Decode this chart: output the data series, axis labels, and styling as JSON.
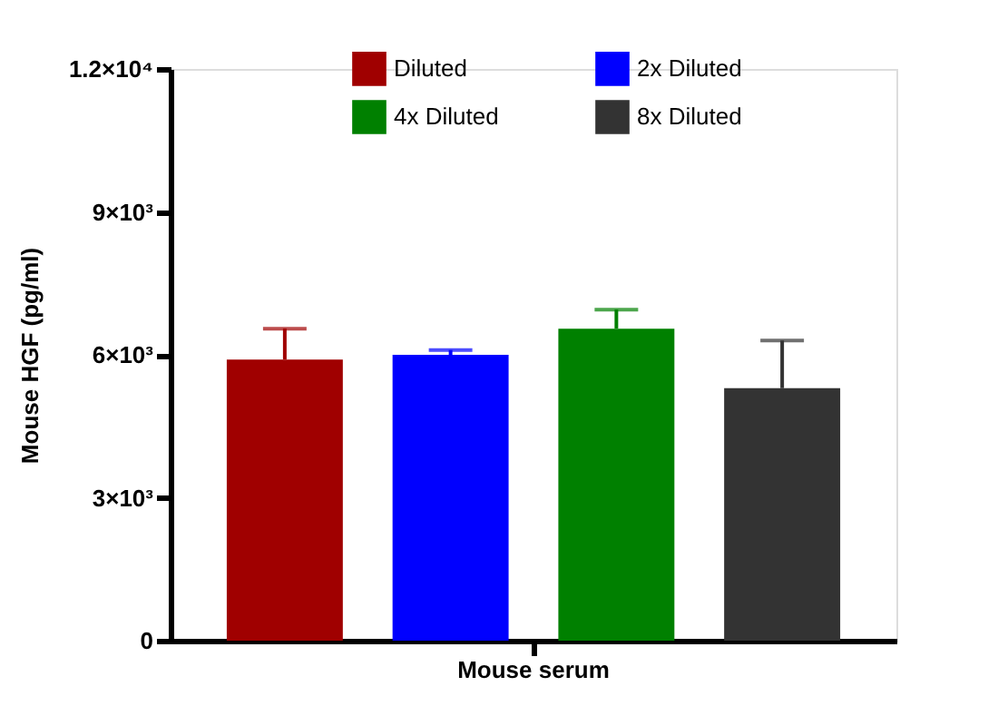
{
  "chart_data": {
    "type": "bar",
    "ylabel": "Mouse HGF (pg/ml)",
    "categories": [
      "Mouse serum"
    ],
    "series": [
      {
        "name": "Diluted",
        "color": "#a00000",
        "values": [
          5900
        ],
        "errors": [
          [
            5900,
            6550
          ]
        ]
      },
      {
        "name": "2x Diluted",
        "color": "#0000ff",
        "values": [
          6000
        ],
        "errors": [
          [
            6000,
            6100
          ]
        ]
      },
      {
        "name": "4x Diluted",
        "color": "#008000",
        "values": [
          6550
        ],
        "errors": [
          [
            6550,
            6950
          ]
        ]
      },
      {
        "name": "8x Diluted",
        "color": "#333333",
        "values": [
          5300
        ],
        "errors": [
          [
            5300,
            6300
          ]
        ]
      }
    ],
    "ylim": [
      0,
      12000
    ],
    "yticks": [
      0,
      {
        "value": 3000,
        "label": "3×10³"
      },
      {
        "value": 6000,
        "label": "6×10³"
      },
      {
        "value": 9000,
        "label": "9×10³"
      },
      {
        "value": 12000,
        "label": "1.2×10⁴"
      }
    ],
    "grid": false,
    "legend": "top"
  }
}
